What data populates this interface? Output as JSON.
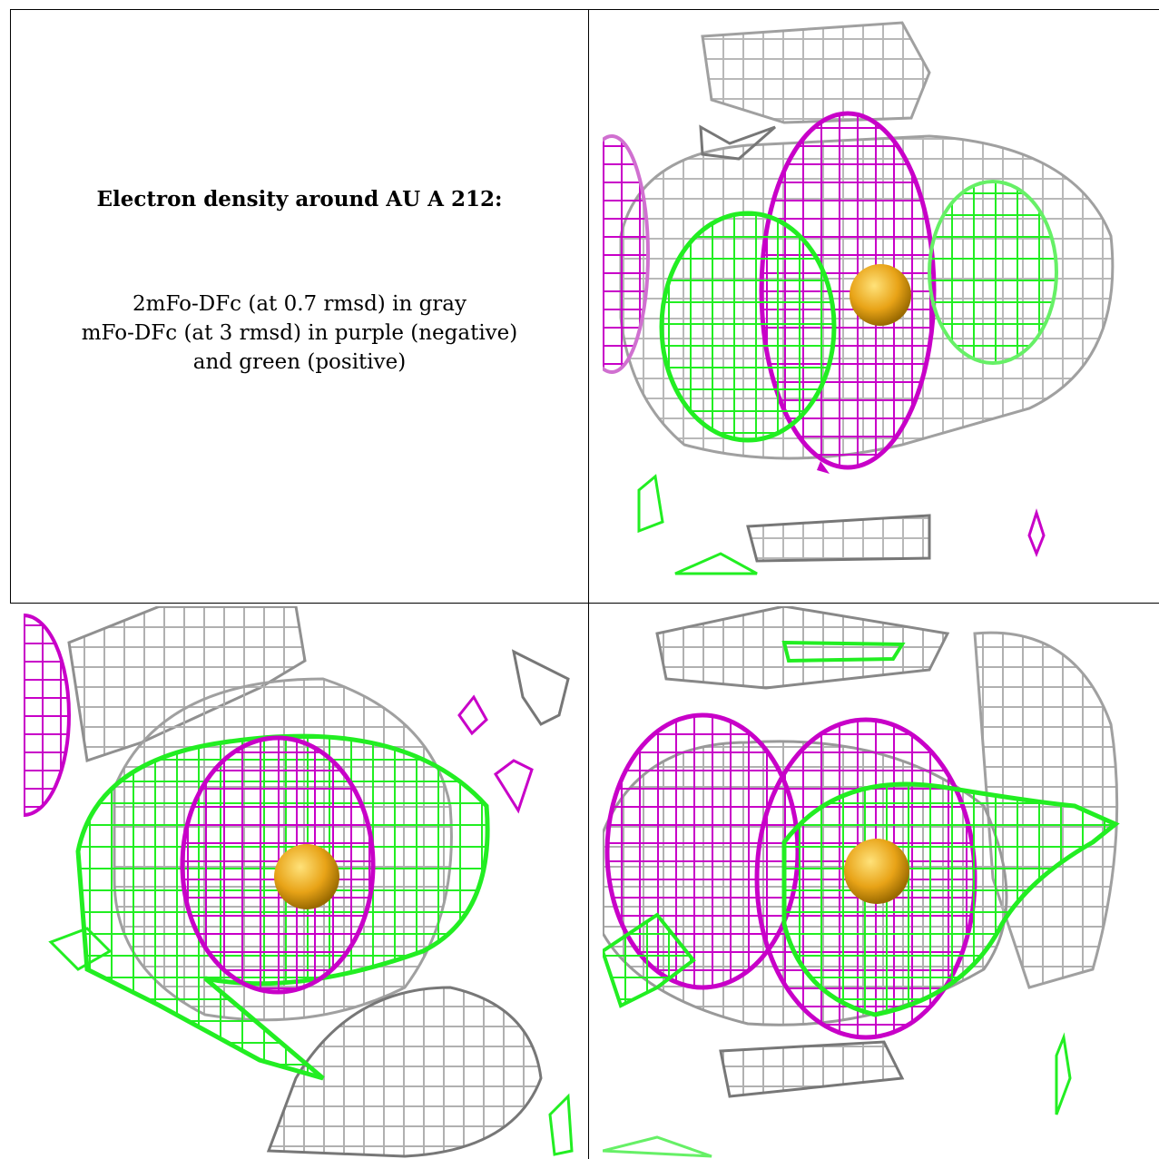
{
  "caption": {
    "title": "Electron density around AU A 212:",
    "line1": "2mFo-DFc (at 0.7 rmsd) in gray",
    "line2": "mFo-DFc (at 3 rmsd) in purple (negative)",
    "line3": "and green (positive)"
  },
  "colors": {
    "gray_map": "#b8b8b8",
    "dark_gray_map": "#8a8a8a",
    "negative_map": "#c800c8",
    "positive_map": "#22ee22",
    "atom": "#e8a317"
  },
  "panels": [
    {
      "name": "view-1"
    },
    {
      "name": "view-2"
    },
    {
      "name": "view-3"
    }
  ]
}
